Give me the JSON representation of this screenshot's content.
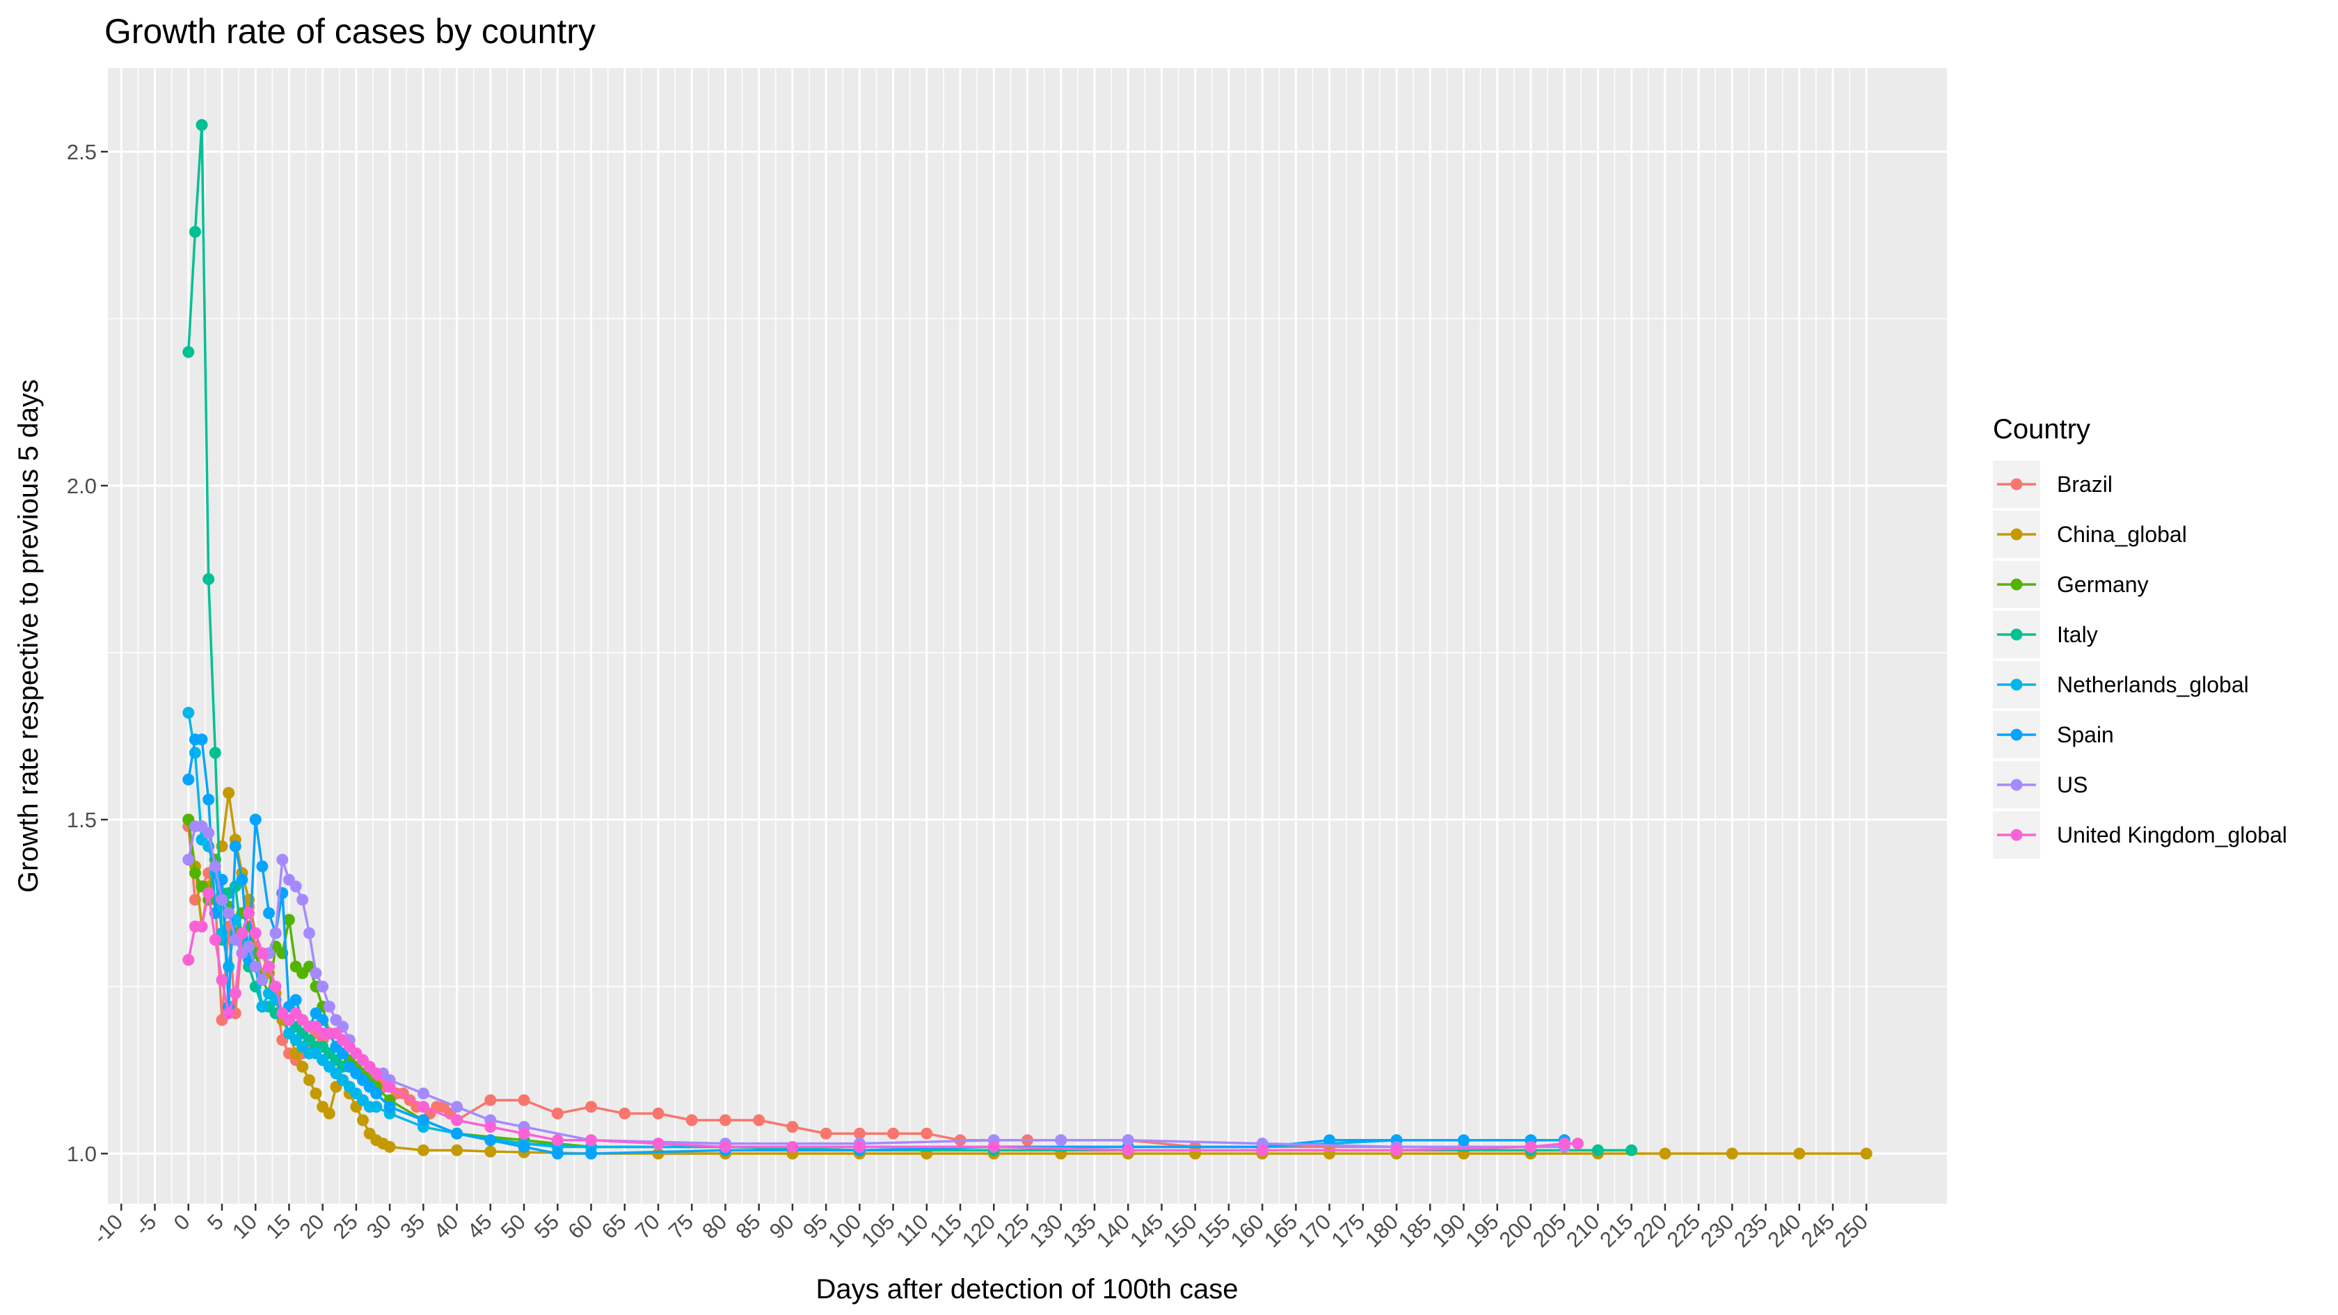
{
  "chart_data": {
    "type": "line",
    "title": "Growth rate of cases by country",
    "xlabel": "Days after detection of 100th case",
    "ylabel": "Growth rate respective to previous 5 days",
    "xlim": [
      -12,
      262
    ],
    "ylim": [
      0.925,
      2.625
    ],
    "x_ticks": [
      -10,
      -5,
      0,
      5,
      10,
      15,
      20,
      25,
      30,
      35,
      40,
      45,
      50,
      55,
      60,
      65,
      70,
      75,
      80,
      85,
      90,
      95,
      100,
      105,
      110,
      115,
      120,
      125,
      130,
      135,
      140,
      145,
      150,
      155,
      160,
      165,
      170,
      175,
      180,
      185,
      190,
      195,
      200,
      205,
      210,
      215,
      220,
      225,
      230,
      235,
      240,
      245,
      250
    ],
    "x_tick_labels": [
      "-10",
      "-5",
      "0",
      "5",
      "10",
      "15",
      "20",
      "25",
      "30",
      "35",
      "40",
      "45",
      "50",
      "55",
      "60",
      "65",
      "70",
      "75",
      "80",
      "85",
      "90",
      "95",
      "100",
      "105",
      "110",
      "115",
      "120",
      "125",
      "130",
      "135",
      "140",
      "145",
      "150",
      "155",
      "160",
      "165",
      "170",
      "175",
      "180",
      "185",
      "190",
      "195",
      "200",
      "205",
      "210",
      "215",
      "220",
      "225",
      "230",
      "235",
      "240",
      "245",
      "250"
    ],
    "y_ticks": [
      1.0,
      1.5,
      2.0,
      2.5
    ],
    "y_tick_labels": [
      "1.0",
      "1.5",
      "2.0",
      "2.5"
    ],
    "grid": true,
    "legend": {
      "title": "Country",
      "position": "right"
    },
    "series": [
      {
        "name": "Brazil",
        "color": "#F8766D",
        "x": [
          0,
          1,
          2,
          3,
          4,
          5,
          6,
          7,
          8,
          9,
          10,
          11,
          12,
          13,
          14,
          15,
          16,
          17,
          18,
          19,
          20,
          21,
          22,
          23,
          24,
          25,
          26,
          27,
          28,
          29,
          30,
          31,
          32,
          33,
          34,
          35,
          36,
          37,
          38,
          39,
          40,
          45,
          50,
          55,
          60,
          65,
          70,
          75,
          80,
          85,
          90,
          95,
          100,
          105,
          110,
          115,
          120,
          125,
          130,
          140,
          150,
          160,
          170,
          180,
          190,
          200
        ],
        "y": [
          1.49,
          1.38,
          1.4,
          1.42,
          1.38,
          1.2,
          1.34,
          1.21,
          1.32,
          1.37,
          1.31,
          1.27,
          1.28,
          1.24,
          1.17,
          1.15,
          1.14,
          1.15,
          1.16,
          1.18,
          1.17,
          1.18,
          1.16,
          1.15,
          1.14,
          1.13,
          1.12,
          1.12,
          1.11,
          1.1,
          1.1,
          1.09,
          1.09,
          1.08,
          1.07,
          1.07,
          1.06,
          1.07,
          1.07,
          1.06,
          1.05,
          1.08,
          1.08,
          1.06,
          1.07,
          1.06,
          1.06,
          1.05,
          1.05,
          1.05,
          1.04,
          1.03,
          1.03,
          1.03,
          1.03,
          1.02,
          1.02,
          1.02,
          1.02,
          1.02,
          1.01,
          1.01,
          1.01,
          1.01,
          1.01,
          1.01
        ]
      },
      {
        "name": "China_global",
        "color": "#C49A00",
        "x": [
          0,
          1,
          2,
          3,
          4,
          5,
          6,
          7,
          8,
          9,
          10,
          11,
          12,
          13,
          14,
          15,
          16,
          17,
          18,
          19,
          20,
          21,
          22,
          23,
          24,
          25,
          26,
          27,
          28,
          29,
          30,
          35,
          40,
          45,
          50,
          55,
          60,
          70,
          80,
          90,
          100,
          110,
          120,
          130,
          140,
          150,
          160,
          170,
          180,
          190,
          200,
          210,
          220,
          230,
          240,
          250
        ],
        "y": [
          1.5,
          1.43,
          1.34,
          1.4,
          1.44,
          1.46,
          1.54,
          1.47,
          1.42,
          1.38,
          1.33,
          1.3,
          1.27,
          1.24,
          1.2,
          1.18,
          1.15,
          1.13,
          1.11,
          1.09,
          1.07,
          1.06,
          1.1,
          1.11,
          1.09,
          1.07,
          1.05,
          1.03,
          1.02,
          1.015,
          1.01,
          1.005,
          1.005,
          1.003,
          1.002,
          1.001,
          1.0,
          1.0,
          1.0,
          1.0,
          1.0,
          1.0,
          1.0,
          1.0,
          1.0,
          1.0,
          1.0,
          1.0,
          1.0,
          1.0,
          1.0,
          1.0,
          1.0,
          1.0,
          1.0,
          1.0
        ]
      },
      {
        "name": "Germany",
        "color": "#53B400",
        "x": [
          0,
          1,
          2,
          3,
          4,
          5,
          6,
          7,
          8,
          9,
          10,
          11,
          12,
          13,
          14,
          15,
          16,
          17,
          18,
          19,
          20,
          21,
          22,
          23,
          24,
          25,
          26,
          27,
          28,
          30,
          35,
          40,
          50,
          60,
          80,
          100,
          120,
          140,
          160,
          180,
          200
        ],
        "y": [
          1.5,
          1.42,
          1.4,
          1.38,
          1.44,
          1.39,
          1.37,
          1.33,
          1.36,
          1.34,
          1.3,
          1.26,
          1.24,
          1.31,
          1.3,
          1.35,
          1.28,
          1.27,
          1.28,
          1.25,
          1.22,
          1.18,
          1.16,
          1.15,
          1.14,
          1.13,
          1.12,
          1.11,
          1.1,
          1.08,
          1.05,
          1.03,
          1.02,
          1.01,
          1.01,
          1.005,
          1.005,
          1.005,
          1.005,
          1.005,
          1.005
        ]
      },
      {
        "name": "Italy",
        "color": "#00C094",
        "x": [
          0,
          1,
          2,
          3,
          4,
          5,
          6,
          7,
          8,
          9,
          10,
          11,
          12,
          13,
          14,
          15,
          16,
          17,
          18,
          19,
          20,
          21,
          22,
          23,
          24,
          25,
          26,
          27,
          28,
          30,
          35,
          40,
          50,
          60,
          80,
          100,
          120,
          140,
          160,
          180,
          200,
          210,
          215
        ],
        "y": [
          2.2,
          2.38,
          2.54,
          1.86,
          1.6,
          1.32,
          1.39,
          1.4,
          1.32,
          1.28,
          1.25,
          1.22,
          1.22,
          1.21,
          1.21,
          1.2,
          1.19,
          1.18,
          1.17,
          1.16,
          1.16,
          1.15,
          1.14,
          1.13,
          1.13,
          1.12,
          1.11,
          1.1,
          1.09,
          1.07,
          1.05,
          1.03,
          1.015,
          1.01,
          1.01,
          1.005,
          1.005,
          1.005,
          1.005,
          1.005,
          1.005,
          1.005,
          1.005
        ]
      },
      {
        "name": "Netherlands_global",
        "color": "#00B6EB",
        "x": [
          0,
          1,
          2,
          3,
          4,
          5,
          6,
          7,
          8,
          9,
          10,
          11,
          12,
          13,
          14,
          15,
          16,
          17,
          18,
          19,
          20,
          21,
          22,
          23,
          24,
          25,
          26,
          27,
          28,
          30,
          35,
          40,
          45,
          50,
          55,
          60,
          80,
          100,
          120,
          140,
          160,
          180,
          200,
          205
        ],
        "y": [
          1.66,
          1.6,
          1.47,
          1.46,
          1.42,
          1.33,
          1.28,
          1.35,
          1.33,
          1.3,
          1.28,
          1.22,
          1.24,
          1.23,
          1.21,
          1.18,
          1.17,
          1.16,
          1.15,
          1.15,
          1.14,
          1.13,
          1.12,
          1.11,
          1.1,
          1.09,
          1.08,
          1.07,
          1.07,
          1.06,
          1.04,
          1.03,
          1.02,
          1.015,
          1.01,
          1.01,
          1.01,
          1.01,
          1.01,
          1.01,
          1.01,
          1.02,
          1.02,
          1.02
        ]
      },
      {
        "name": "Spain",
        "color": "#06A4FF",
        "x": [
          0,
          1,
          2,
          3,
          4,
          5,
          6,
          7,
          8,
          9,
          10,
          11,
          12,
          13,
          14,
          15,
          16,
          17,
          18,
          19,
          20,
          21,
          22,
          23,
          24,
          25,
          26,
          27,
          28,
          30,
          35,
          40,
          45,
          50,
          55,
          60,
          80,
          100,
          120,
          140,
          160,
          170,
          180,
          190,
          200,
          205
        ],
        "y": [
          1.56,
          1.62,
          1.62,
          1.53,
          1.36,
          1.41,
          1.22,
          1.46,
          1.41,
          1.29,
          1.5,
          1.43,
          1.36,
          1.33,
          1.39,
          1.22,
          1.23,
          1.2,
          1.19,
          1.21,
          1.2,
          1.18,
          1.16,
          1.15,
          1.13,
          1.12,
          1.11,
          1.1,
          1.09,
          1.07,
          1.05,
          1.03,
          1.02,
          1.01,
          1.0,
          1.0,
          1.005,
          1.005,
          1.01,
          1.01,
          1.01,
          1.02,
          1.02,
          1.02,
          1.02,
          1.02
        ]
      },
      {
        "name": "US",
        "color": "#A58AFF",
        "x": [
          0,
          1,
          2,
          3,
          4,
          5,
          6,
          7,
          8,
          9,
          10,
          11,
          12,
          13,
          14,
          15,
          16,
          17,
          18,
          19,
          20,
          21,
          22,
          23,
          24,
          25,
          26,
          27,
          28,
          29,
          30,
          35,
          40,
          45,
          50,
          60,
          80,
          100,
          120,
          130,
          140,
          160,
          180,
          200,
          205
        ],
        "y": [
          1.44,
          1.49,
          1.49,
          1.48,
          1.43,
          1.38,
          1.36,
          1.32,
          1.3,
          1.31,
          1.28,
          1.26,
          1.3,
          1.33,
          1.44,
          1.41,
          1.4,
          1.38,
          1.33,
          1.27,
          1.25,
          1.22,
          1.2,
          1.19,
          1.17,
          1.15,
          1.14,
          1.13,
          1.12,
          1.12,
          1.11,
          1.09,
          1.07,
          1.05,
          1.04,
          1.02,
          1.015,
          1.015,
          1.02,
          1.02,
          1.02,
          1.015,
          1.01,
          1.01,
          1.01
        ]
      },
      {
        "name": "United Kingdom_global",
        "color": "#FB61D7",
        "x": [
          0,
          1,
          2,
          3,
          4,
          5,
          6,
          7,
          8,
          9,
          10,
          11,
          12,
          13,
          14,
          15,
          16,
          17,
          18,
          19,
          20,
          21,
          22,
          23,
          24,
          25,
          26,
          27,
          28,
          30,
          35,
          40,
          45,
          50,
          55,
          60,
          70,
          80,
          90,
          100,
          120,
          140,
          160,
          180,
          200,
          205,
          207
        ],
        "y": [
          1.29,
          1.34,
          1.34,
          1.39,
          1.32,
          1.26,
          1.21,
          1.24,
          1.33,
          1.36,
          1.33,
          1.3,
          1.28,
          1.25,
          1.21,
          1.2,
          1.21,
          1.2,
          1.19,
          1.19,
          1.18,
          1.18,
          1.18,
          1.17,
          1.16,
          1.15,
          1.14,
          1.13,
          1.12,
          1.1,
          1.07,
          1.05,
          1.04,
          1.03,
          1.02,
          1.02,
          1.015,
          1.01,
          1.01,
          1.01,
          1.01,
          1.005,
          1.005,
          1.005,
          1.01,
          1.015,
          1.015
        ]
      }
    ]
  }
}
